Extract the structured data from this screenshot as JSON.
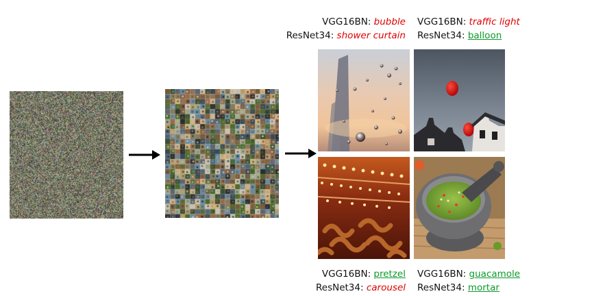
{
  "pipeline": {
    "step1": "noise-image",
    "step2": "image-grid"
  },
  "results": [
    {
      "id": "top-left",
      "vgg_label": "VGG16BN:",
      "vgg_pred": "bubble",
      "vgg_correct": false,
      "resnet_label": "ResNet34:",
      "resnet_pred": "shower curtain",
      "resnet_correct": false
    },
    {
      "id": "top-right",
      "vgg_label": "VGG16BN:",
      "vgg_pred": "traffic light",
      "vgg_correct": false,
      "resnet_label": "ResNet34:",
      "resnet_pred": "balloon",
      "resnet_correct": true
    },
    {
      "id": "bottom-left",
      "vgg_label": "VGG16BN:",
      "vgg_pred": "pretzel",
      "vgg_correct": true,
      "resnet_label": "ResNet34:",
      "resnet_pred": "carousel",
      "resnet_correct": false
    },
    {
      "id": "bottom-right",
      "vgg_label": "VGG16BN:",
      "vgg_pred": "guacamole",
      "vgg_correct": true,
      "resnet_label": "ResNet34:",
      "resnet_pred": "mortar",
      "resnet_correct": true
    }
  ],
  "colors": {
    "wrong": "#e00000",
    "correct": "#0a9a2a"
  }
}
